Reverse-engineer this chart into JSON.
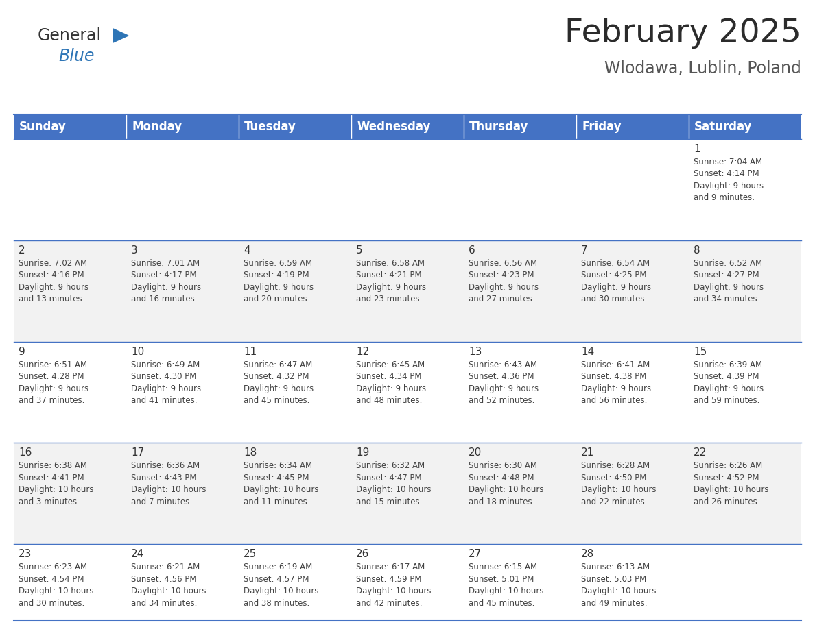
{
  "title": "February 2025",
  "subtitle": "Wlodawa, Lublin, Poland",
  "header_bg": "#4472C4",
  "header_text_color": "#FFFFFF",
  "cell_bg_light": "#F2F2F2",
  "cell_bg_white": "#FFFFFF",
  "cell_text_color": "#444444",
  "day_number_color": "#333333",
  "border_color": "#4472C4",
  "days_of_week": [
    "Sunday",
    "Monday",
    "Tuesday",
    "Wednesday",
    "Thursday",
    "Friday",
    "Saturday"
  ],
  "weeks": [
    [
      {
        "day": null,
        "info": null
      },
      {
        "day": null,
        "info": null
      },
      {
        "day": null,
        "info": null
      },
      {
        "day": null,
        "info": null
      },
      {
        "day": null,
        "info": null
      },
      {
        "day": null,
        "info": null
      },
      {
        "day": 1,
        "info": "Sunrise: 7:04 AM\nSunset: 4:14 PM\nDaylight: 9 hours\nand 9 minutes."
      }
    ],
    [
      {
        "day": 2,
        "info": "Sunrise: 7:02 AM\nSunset: 4:16 PM\nDaylight: 9 hours\nand 13 minutes."
      },
      {
        "day": 3,
        "info": "Sunrise: 7:01 AM\nSunset: 4:17 PM\nDaylight: 9 hours\nand 16 minutes."
      },
      {
        "day": 4,
        "info": "Sunrise: 6:59 AM\nSunset: 4:19 PM\nDaylight: 9 hours\nand 20 minutes."
      },
      {
        "day": 5,
        "info": "Sunrise: 6:58 AM\nSunset: 4:21 PM\nDaylight: 9 hours\nand 23 minutes."
      },
      {
        "day": 6,
        "info": "Sunrise: 6:56 AM\nSunset: 4:23 PM\nDaylight: 9 hours\nand 27 minutes."
      },
      {
        "day": 7,
        "info": "Sunrise: 6:54 AM\nSunset: 4:25 PM\nDaylight: 9 hours\nand 30 minutes."
      },
      {
        "day": 8,
        "info": "Sunrise: 6:52 AM\nSunset: 4:27 PM\nDaylight: 9 hours\nand 34 minutes."
      }
    ],
    [
      {
        "day": 9,
        "info": "Sunrise: 6:51 AM\nSunset: 4:28 PM\nDaylight: 9 hours\nand 37 minutes."
      },
      {
        "day": 10,
        "info": "Sunrise: 6:49 AM\nSunset: 4:30 PM\nDaylight: 9 hours\nand 41 minutes."
      },
      {
        "day": 11,
        "info": "Sunrise: 6:47 AM\nSunset: 4:32 PM\nDaylight: 9 hours\nand 45 minutes."
      },
      {
        "day": 12,
        "info": "Sunrise: 6:45 AM\nSunset: 4:34 PM\nDaylight: 9 hours\nand 48 minutes."
      },
      {
        "day": 13,
        "info": "Sunrise: 6:43 AM\nSunset: 4:36 PM\nDaylight: 9 hours\nand 52 minutes."
      },
      {
        "day": 14,
        "info": "Sunrise: 6:41 AM\nSunset: 4:38 PM\nDaylight: 9 hours\nand 56 minutes."
      },
      {
        "day": 15,
        "info": "Sunrise: 6:39 AM\nSunset: 4:39 PM\nDaylight: 9 hours\nand 59 minutes."
      }
    ],
    [
      {
        "day": 16,
        "info": "Sunrise: 6:38 AM\nSunset: 4:41 PM\nDaylight: 10 hours\nand 3 minutes."
      },
      {
        "day": 17,
        "info": "Sunrise: 6:36 AM\nSunset: 4:43 PM\nDaylight: 10 hours\nand 7 minutes."
      },
      {
        "day": 18,
        "info": "Sunrise: 6:34 AM\nSunset: 4:45 PM\nDaylight: 10 hours\nand 11 minutes."
      },
      {
        "day": 19,
        "info": "Sunrise: 6:32 AM\nSunset: 4:47 PM\nDaylight: 10 hours\nand 15 minutes."
      },
      {
        "day": 20,
        "info": "Sunrise: 6:30 AM\nSunset: 4:48 PM\nDaylight: 10 hours\nand 18 minutes."
      },
      {
        "day": 21,
        "info": "Sunrise: 6:28 AM\nSunset: 4:50 PM\nDaylight: 10 hours\nand 22 minutes."
      },
      {
        "day": 22,
        "info": "Sunrise: 6:26 AM\nSunset: 4:52 PM\nDaylight: 10 hours\nand 26 minutes."
      }
    ],
    [
      {
        "day": 23,
        "info": "Sunrise: 6:23 AM\nSunset: 4:54 PM\nDaylight: 10 hours\nand 30 minutes."
      },
      {
        "day": 24,
        "info": "Sunrise: 6:21 AM\nSunset: 4:56 PM\nDaylight: 10 hours\nand 34 minutes."
      },
      {
        "day": 25,
        "info": "Sunrise: 6:19 AM\nSunset: 4:57 PM\nDaylight: 10 hours\nand 38 minutes."
      },
      {
        "day": 26,
        "info": "Sunrise: 6:17 AM\nSunset: 4:59 PM\nDaylight: 10 hours\nand 42 minutes."
      },
      {
        "day": 27,
        "info": "Sunrise: 6:15 AM\nSunset: 5:01 PM\nDaylight: 10 hours\nand 45 minutes."
      },
      {
        "day": 28,
        "info": "Sunrise: 6:13 AM\nSunset: 5:03 PM\nDaylight: 10 hours\nand 49 minutes."
      },
      {
        "day": null,
        "info": null
      }
    ]
  ],
  "logo_general_color": "#333333",
  "logo_blue_color": "#2E75B6",
  "logo_triangle_color": "#2E75B6",
  "title_fontsize": 34,
  "subtitle_fontsize": 17,
  "header_fontsize": 12,
  "day_num_fontsize": 11,
  "info_fontsize": 8.5
}
